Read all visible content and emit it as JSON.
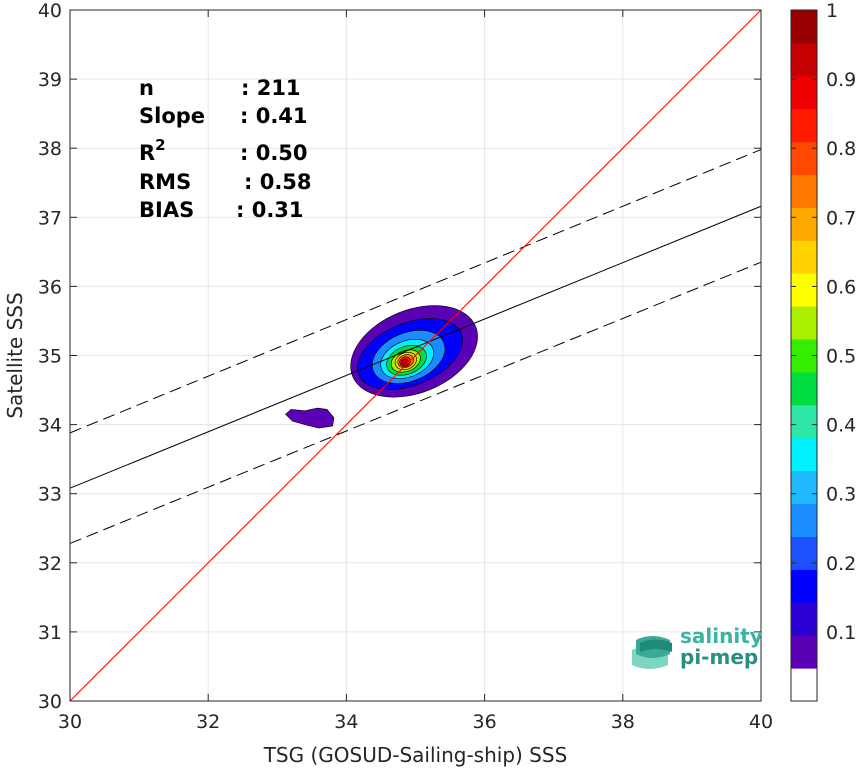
{
  "chart_data": {
    "type": "scatter",
    "subtype": "density-contour",
    "title": "",
    "xlabel": "TSG (GOSUD-Sailing-ship) SSS",
    "ylabel": "Satellite SSS",
    "xlim": [
      30,
      40
    ],
    "ylim": [
      30,
      40
    ],
    "x_ticks": [
      30,
      32,
      34,
      36,
      38,
      40
    ],
    "y_ticks": [
      30,
      31,
      32,
      33,
      34,
      35,
      36,
      37,
      38,
      39,
      40
    ],
    "grid": true,
    "stats": [
      {
        "label": "n",
        "sup": "",
        "value": ": 211"
      },
      {
        "label": "Slope",
        "sup": "",
        "value": ": 0.41"
      },
      {
        "label": "R",
        "sup": "2",
        "value": ": 0.50"
      },
      {
        "label": "RMS",
        "sup": "",
        "value": ": 0.58"
      },
      {
        "label": "BIAS",
        "sup": "",
        "value": ": 0.31"
      }
    ],
    "lines": {
      "identity": {
        "x": [
          30,
          40
        ],
        "y": [
          30,
          40
        ],
        "color": "#ff0000"
      },
      "regression": {
        "x": [
          30,
          40
        ],
        "y": [
          33.08,
          37.16
        ],
        "color": "#000000"
      },
      "upper_bound": {
        "x": [
          30,
          40
        ],
        "y": [
          33.88,
          37.98
        ],
        "color": "#000000",
        "dash": true
      },
      "lower_bound": {
        "x": [
          30,
          40
        ],
        "y": [
          32.28,
          36.35
        ],
        "color": "#000000",
        "dash": true
      }
    },
    "density": {
      "levels": [
        0.05,
        0.15,
        0.25,
        0.35,
        0.45,
        0.55,
        0.65,
        0.75,
        0.85,
        0.95
      ],
      "main_cluster": {
        "center": [
          34.88,
          34.93
        ],
        "cells": [
          {
            "center": [
              34.98,
              35.06
            ],
            "rx": 0.96,
            "ry": 0.6
          },
          {
            "center": [
              34.92,
              35.02
            ],
            "rx": 0.8,
            "ry": 0.45
          },
          {
            "center": [
              34.9,
              34.98
            ],
            "rx": 0.55,
            "ry": 0.35
          },
          {
            "center": [
              34.88,
              34.95
            ],
            "rx": 0.4,
            "ry": 0.26
          },
          {
            "center": [
              34.87,
              34.93
            ],
            "rx": 0.3,
            "ry": 0.2
          },
          {
            "center": [
              34.86,
              34.92
            ],
            "rx": 0.22,
            "ry": 0.15
          },
          {
            "center": [
              34.86,
              34.92
            ],
            "rx": 0.16,
            "ry": 0.12
          },
          {
            "center": [
              34.86,
              34.92
            ],
            "rx": 0.12,
            "ry": 0.09
          },
          {
            "center": [
              34.85,
              34.91
            ],
            "rx": 0.08,
            "ry": 0.07
          },
          {
            "center": [
              34.85,
              34.9
            ],
            "rx": 0.05,
            "ry": 0.05
          }
        ]
      },
      "minor_cluster": {
        "center": [
          33.48,
          34.13
        ],
        "polygon_x": [
          33.12,
          33.2,
          33.4,
          33.58,
          33.72,
          33.82,
          33.8,
          33.6,
          33.4,
          33.22,
          33.12
        ],
        "polygon_y": [
          34.15,
          34.22,
          34.2,
          34.24,
          34.22,
          34.1,
          33.98,
          33.95,
          34.0,
          34.05,
          34.15
        ]
      }
    },
    "colorbar": {
      "ticks": [
        0.1,
        0.2,
        0.3,
        0.4,
        0.5,
        0.6,
        0.7,
        0.8,
        0.9,
        1
      ],
      "tick_labels": [
        "0.1",
        "0.2",
        "0.3",
        "0.4",
        "0.5",
        "0.6",
        "0.7",
        "0.8",
        "0.9",
        "1"
      ],
      "colors": [
        "#ffffff",
        "#5a00b5",
        "#2a00d5",
        "#0000ff",
        "#1d50ff",
        "#1a8cff",
        "#20b8ff",
        "#00f0ff",
        "#2fe8a8",
        "#00dd40",
        "#33ee00",
        "#aaee00",
        "#ffff00",
        "#ffd200",
        "#ffa800",
        "#ff7800",
        "#ff4800",
        "#ff1a00",
        "#ee0000",
        "#c40000",
        "#990000"
      ],
      "range": [
        0,
        1
      ]
    }
  },
  "logo": {
    "line1": "salinity",
    "line2": "pi-mep"
  }
}
